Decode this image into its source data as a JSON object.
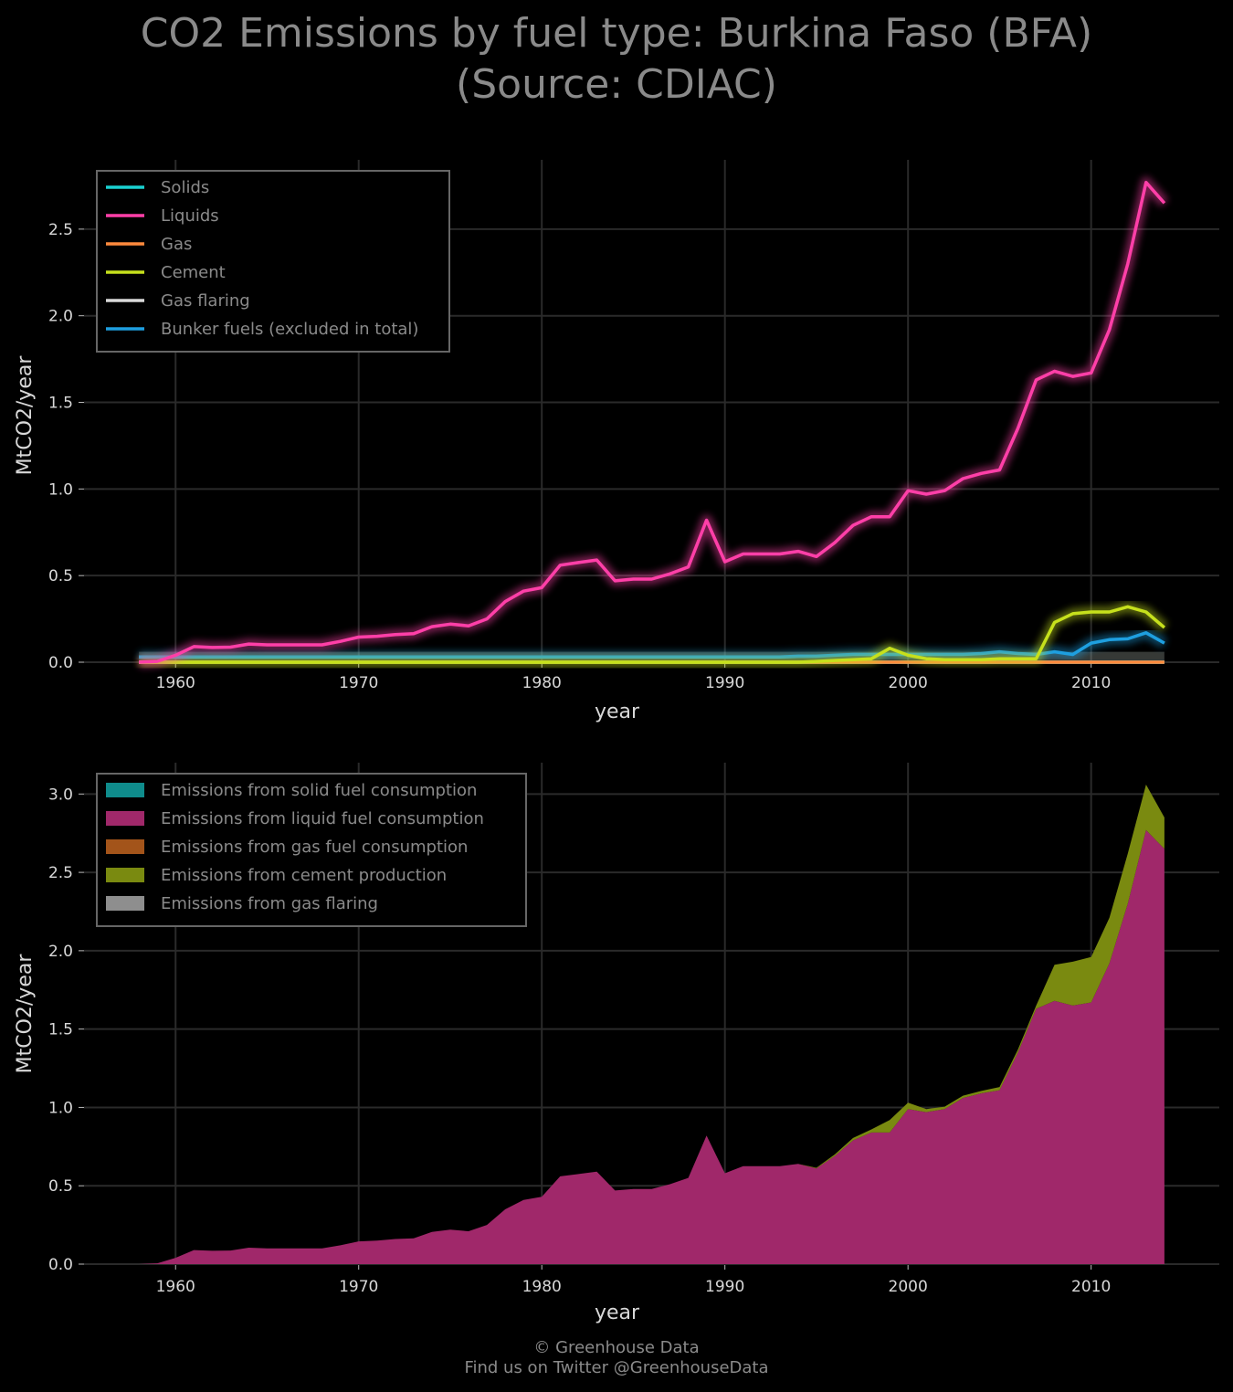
{
  "title_line1": "CO2 Emissions by fuel type: Burkina Faso (BFA)",
  "title_line2": "(Source: CDIAC)",
  "footer": {
    "credit": "© Greenhouse Data",
    "twitter": "Find us on Twitter @GreenhouseData"
  },
  "colors": {
    "background": "#000000",
    "grid": "#2a2a2a",
    "solids": "#1ad1d1",
    "liquids": "#ff3fa8",
    "gas": "#ff8a3d",
    "cement": "#c6e01c",
    "gas_flaring": "#d9d9d9",
    "bunker": "#1e9fe0",
    "area_solid": "#0f8c8c",
    "area_liquid": "#a0286a",
    "area_gas": "#a3541a",
    "area_cement": "#7a8a10",
    "area_flaring": "#8e8e8e"
  },
  "chart_data": [
    {
      "type": "line",
      "xlabel": "year",
      "ylabel": "MtCO2/year",
      "xlim": [
        1955,
        2017
      ],
      "ylim": [
        0,
        2.9
      ],
      "xticks": [
        "1960",
        "1970",
        "1980",
        "1990",
        "2000",
        "2010"
      ],
      "yticks": [
        "0.0",
        "0.5",
        "1.0",
        "1.5",
        "2.0",
        "2.5"
      ],
      "grid": true,
      "legend": "top-left",
      "x": [
        1958,
        1959,
        1960,
        1961,
        1962,
        1963,
        1964,
        1965,
        1966,
        1967,
        1968,
        1969,
        1970,
        1971,
        1972,
        1973,
        1974,
        1975,
        1976,
        1977,
        1978,
        1979,
        1980,
        1981,
        1982,
        1983,
        1984,
        1985,
        1986,
        1987,
        1988,
        1989,
        1990,
        1991,
        1992,
        1993,
        1994,
        1995,
        1996,
        1997,
        1998,
        1999,
        2000,
        2001,
        2002,
        2003,
        2004,
        2005,
        2006,
        2007,
        2008,
        2009,
        2010,
        2011,
        2012,
        2013,
        2014
      ],
      "series": [
        {
          "name": "Solids",
          "values": [
            0,
            0,
            0,
            0,
            0,
            0,
            0,
            0,
            0,
            0,
            0,
            0,
            0,
            0,
            0,
            0,
            0,
            0,
            0,
            0,
            0,
            0,
            0,
            0,
            0,
            0,
            0,
            0,
            0,
            0,
            0,
            0,
            0,
            0,
            0,
            0,
            0,
            0,
            0,
            0,
            0,
            0,
            0,
            0,
            0,
            0,
            0,
            0,
            0,
            0,
            0,
            0,
            0,
            0,
            0,
            0,
            0
          ]
        },
        {
          "name": "Liquids",
          "values": [
            0.0,
            0.005,
            0.04,
            0.09,
            0.085,
            0.087,
            0.105,
            0.1,
            0.1,
            0.1,
            0.1,
            0.12,
            0.145,
            0.15,
            0.16,
            0.165,
            0.205,
            0.22,
            0.21,
            0.25,
            0.35,
            0.41,
            0.43,
            0.56,
            0.575,
            0.59,
            0.47,
            0.48,
            0.48,
            0.51,
            0.55,
            0.82,
            0.58,
            0.625,
            0.625,
            0.625,
            0.64,
            0.61,
            0.69,
            0.79,
            0.84,
            0.84,
            0.99,
            0.97,
            0.99,
            1.06,
            1.09,
            1.11,
            1.35,
            1.63,
            1.68,
            1.65,
            1.67,
            1.92,
            2.3,
            2.77,
            2.65
          ]
        },
        {
          "name": "Gas",
          "values": [
            0,
            0,
            0,
            0,
            0,
            0,
            0,
            0,
            0,
            0,
            0,
            0,
            0,
            0,
            0,
            0,
            0,
            0,
            0,
            0,
            0,
            0,
            0,
            0,
            0,
            0,
            0,
            0,
            0,
            0,
            0,
            0,
            0,
            0,
            0,
            0,
            0,
            0,
            0,
            0,
            0,
            0,
            0,
            0,
            0,
            0,
            0,
            0,
            0,
            0,
            0,
            0,
            0,
            0,
            0,
            0,
            0
          ]
        },
        {
          "name": "Cement",
          "values": [
            0,
            0,
            0,
            0,
            0,
            0,
            0,
            0,
            0,
            0,
            0,
            0,
            0,
            0,
            0,
            0,
            0,
            0,
            0,
            0,
            0,
            0,
            0,
            0,
            0,
            0,
            0,
            0,
            0,
            0,
            0,
            0,
            0,
            0,
            0,
            0,
            0,
            0.005,
            0.01,
            0.015,
            0.02,
            0.08,
            0.04,
            0.02,
            0.015,
            0.015,
            0.015,
            0.02,
            0.02,
            0.02,
            0.23,
            0.28,
            0.29,
            0.29,
            0.32,
            0.29,
            0.2
          ]
        },
        {
          "name": "Gas flaring",
          "values": [
            0,
            0,
            0,
            0,
            0,
            0,
            0,
            0,
            0,
            0,
            0,
            0,
            0,
            0,
            0,
            0,
            0,
            0,
            0,
            0,
            0,
            0,
            0,
            0,
            0,
            0,
            0,
            0,
            0,
            0,
            0,
            0,
            0,
            0,
            0,
            0,
            0,
            0,
            0,
            0,
            0,
            0,
            0,
            0,
            0,
            0,
            0,
            0,
            0,
            0,
            0,
            0,
            0,
            0,
            0,
            0,
            0
          ]
        },
        {
          "name": "Bunker fuels (excluded in total)",
          "values": [
            0.03,
            0.03,
            0.03,
            0.03,
            0.03,
            0.03,
            0.03,
            0.03,
            0.03,
            0.03,
            0.03,
            0.03,
            0.03,
            0.03,
            0.03,
            0.03,
            0.03,
            0.03,
            0.03,
            0.03,
            0.03,
            0.03,
            0.03,
            0.03,
            0.03,
            0.03,
            0.03,
            0.03,
            0.03,
            0.03,
            0.03,
            0.03,
            0.03,
            0.03,
            0.03,
            0.03,
            0.035,
            0.035,
            0.04,
            0.045,
            0.045,
            0.045,
            0.045,
            0.045,
            0.045,
            0.045,
            0.05,
            0.06,
            0.05,
            0.045,
            0.06,
            0.045,
            0.11,
            0.13,
            0.135,
            0.17,
            0.11
          ]
        }
      ]
    },
    {
      "type": "area",
      "stacked": true,
      "xlabel": "year",
      "ylabel": "MtCO2/year",
      "xlim": [
        1955,
        2017
      ],
      "ylim": [
        0,
        3.2
      ],
      "xticks": [
        "1960",
        "1970",
        "1980",
        "1990",
        "2000",
        "2010"
      ],
      "yticks": [
        "0.0",
        "0.5",
        "1.0",
        "1.5",
        "2.0",
        "2.5",
        "3.0"
      ],
      "grid": true,
      "legend": "top-left",
      "x": [
        1958,
        1959,
        1960,
        1961,
        1962,
        1963,
        1964,
        1965,
        1966,
        1967,
        1968,
        1969,
        1970,
        1971,
        1972,
        1973,
        1974,
        1975,
        1976,
        1977,
        1978,
        1979,
        1980,
        1981,
        1982,
        1983,
        1984,
        1985,
        1986,
        1987,
        1988,
        1989,
        1990,
        1991,
        1992,
        1993,
        1994,
        1995,
        1996,
        1997,
        1998,
        1999,
        2000,
        2001,
        2002,
        2003,
        2004,
        2005,
        2006,
        2007,
        2008,
        2009,
        2010,
        2011,
        2012,
        2013,
        2014
      ],
      "series": [
        {
          "name": "Emissions from solid fuel consumption",
          "values": [
            0,
            0,
            0,
            0,
            0,
            0,
            0,
            0,
            0,
            0,
            0,
            0,
            0,
            0,
            0,
            0,
            0,
            0,
            0,
            0,
            0,
            0,
            0,
            0,
            0,
            0,
            0,
            0,
            0,
            0,
            0,
            0,
            0,
            0,
            0,
            0,
            0,
            0,
            0,
            0,
            0,
            0,
            0,
            0,
            0,
            0,
            0,
            0,
            0,
            0,
            0,
            0,
            0,
            0,
            0,
            0,
            0
          ]
        },
        {
          "name": "Emissions from liquid fuel consumption",
          "values": [
            0.0,
            0.005,
            0.04,
            0.09,
            0.085,
            0.087,
            0.105,
            0.1,
            0.1,
            0.1,
            0.1,
            0.12,
            0.145,
            0.15,
            0.16,
            0.165,
            0.205,
            0.22,
            0.21,
            0.25,
            0.35,
            0.41,
            0.43,
            0.56,
            0.575,
            0.59,
            0.47,
            0.48,
            0.48,
            0.51,
            0.55,
            0.82,
            0.58,
            0.625,
            0.625,
            0.625,
            0.64,
            0.61,
            0.69,
            0.79,
            0.84,
            0.84,
            0.99,
            0.97,
            0.99,
            1.06,
            1.09,
            1.11,
            1.35,
            1.63,
            1.68,
            1.65,
            1.67,
            1.92,
            2.3,
            2.77,
            2.65
          ]
        },
        {
          "name": "Emissions from gas fuel consumption",
          "values": [
            0,
            0,
            0,
            0,
            0,
            0,
            0,
            0,
            0,
            0,
            0,
            0,
            0,
            0,
            0,
            0,
            0,
            0,
            0,
            0,
            0,
            0,
            0,
            0,
            0,
            0,
            0,
            0,
            0,
            0,
            0,
            0,
            0,
            0,
            0,
            0,
            0,
            0,
            0,
            0,
            0,
            0,
            0,
            0,
            0,
            0,
            0,
            0,
            0,
            0,
            0,
            0,
            0,
            0,
            0,
            0,
            0
          ]
        },
        {
          "name": "Emissions from cement production",
          "values": [
            0,
            0,
            0,
            0,
            0,
            0,
            0,
            0,
            0,
            0,
            0,
            0,
            0,
            0,
            0,
            0,
            0,
            0,
            0,
            0,
            0,
            0,
            0,
            0,
            0,
            0,
            0,
            0,
            0,
            0,
            0,
            0,
            0,
            0,
            0,
            0,
            0,
            0.005,
            0.01,
            0.015,
            0.02,
            0.08,
            0.04,
            0.02,
            0.015,
            0.015,
            0.015,
            0.02,
            0.02,
            0.02,
            0.23,
            0.28,
            0.29,
            0.29,
            0.32,
            0.29,
            0.2
          ]
        },
        {
          "name": "Emissions from gas flaring",
          "values": [
            0,
            0,
            0,
            0,
            0,
            0,
            0,
            0,
            0,
            0,
            0,
            0,
            0,
            0,
            0,
            0,
            0,
            0,
            0,
            0,
            0,
            0,
            0,
            0,
            0,
            0,
            0,
            0,
            0,
            0,
            0,
            0,
            0,
            0,
            0,
            0,
            0,
            0,
            0,
            0,
            0,
            0,
            0,
            0,
            0,
            0,
            0,
            0,
            0,
            0,
            0,
            0,
            0,
            0,
            0,
            0,
            0
          ]
        }
      ]
    }
  ]
}
